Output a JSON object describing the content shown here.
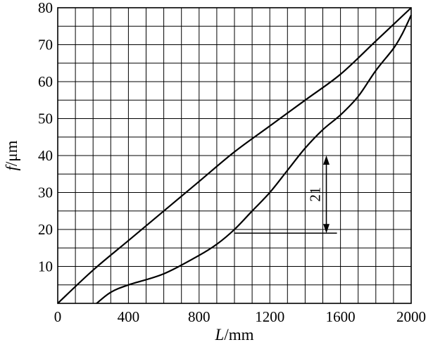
{
  "chart_data": {
    "type": "line",
    "xlabel": {
      "var": "L",
      "unit": "/mm"
    },
    "ylabel": {
      "var": "f",
      "unit": "/μm"
    },
    "xlim": [
      0,
      2000
    ],
    "ylim": [
      0,
      80
    ],
    "grid": true,
    "x_ticks": [
      0,
      400,
      800,
      1200,
      1600,
      2000
    ],
    "y_ticks": [
      10,
      20,
      30,
      40,
      50,
      60,
      70,
      80
    ],
    "series": [
      {
        "points": [
          [
            0,
            0
          ],
          [
            200,
            9
          ],
          [
            400,
            17
          ],
          [
            600,
            25
          ],
          [
            800,
            33
          ],
          [
            1000,
            41
          ],
          [
            1200,
            48
          ],
          [
            1400,
            55
          ],
          [
            1600,
            62
          ],
          [
            1800,
            71
          ],
          [
            2000,
            80
          ]
        ]
      },
      {
        "points": [
          [
            220,
            0
          ],
          [
            300,
            3
          ],
          [
            400,
            5
          ],
          [
            600,
            8
          ],
          [
            800,
            13
          ],
          [
            900,
            16
          ],
          [
            1000,
            20
          ],
          [
            1100,
            25
          ],
          [
            1200,
            30
          ],
          [
            1300,
            36
          ],
          [
            1400,
            42
          ],
          [
            1500,
            47
          ],
          [
            1600,
            51
          ],
          [
            1700,
            56
          ],
          [
            1800,
            63
          ],
          [
            1900,
            69
          ],
          [
            1950,
            73
          ],
          [
            2000,
            78
          ]
        ]
      }
    ],
    "annotations": [
      {
        "label": "21",
        "line_y": 19,
        "line_x": [
          1000,
          1580
        ],
        "arrow_x": 1520,
        "arrow_y": [
          19,
          40
        ]
      }
    ]
  }
}
